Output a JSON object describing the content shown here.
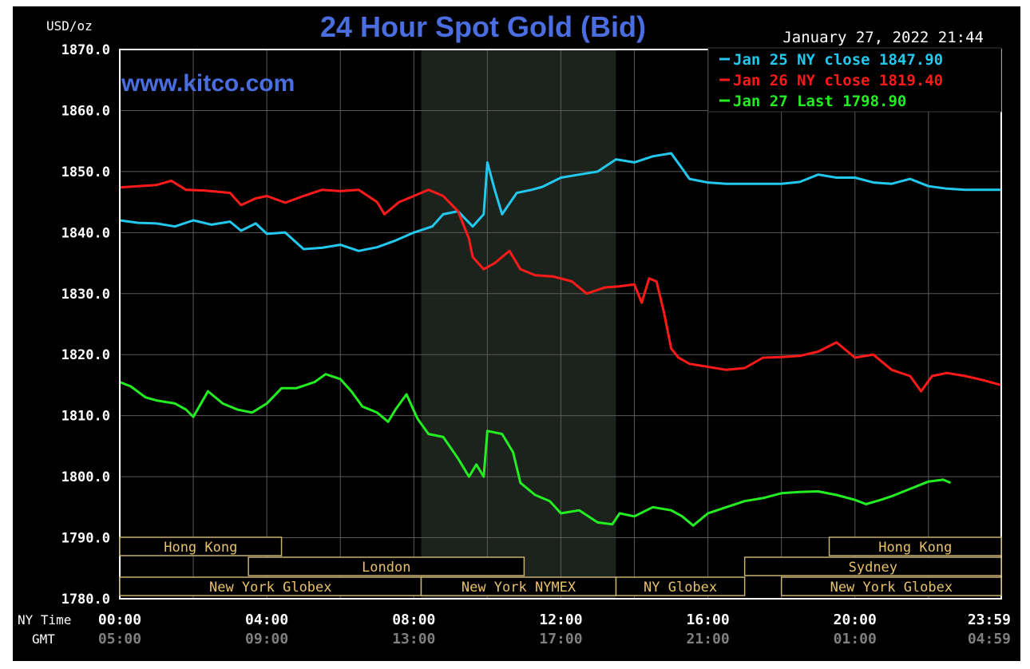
{
  "header": {
    "unit_label": "USD/oz",
    "title": "24 Hour Spot Gold (Bid)",
    "date_time": "January 27, 2022 21:44",
    "watermark": "www.kitco.com"
  },
  "colors": {
    "background": "#000000",
    "frame": "#ffffff",
    "grid": "#5a5a5a",
    "title": "#4a6ee0",
    "watermark": "#4a6ee0",
    "highlight": "#1c231c",
    "session_border": "#c8b070",
    "session_text": "#e7c16a",
    "time_text": "#ffffff",
    "gmt_text": "#7f7f7f",
    "jan25": "#22c8ee",
    "jan26": "#ff1a1a",
    "jan27": "#22ee22"
  },
  "legend": {
    "items": [
      {
        "label": "Jan 25 NY close 1847.90",
        "color": "#22c8ee"
      },
      {
        "label": "Jan 26 NY close 1819.40",
        "color": "#ff1a1a"
      },
      {
        "label": "Jan 27 Last 1798.90",
        "color": "#22ee22"
      }
    ]
  },
  "axis_footer": {
    "ny_label": "NY Time",
    "gmt_label": "GMT",
    "ny_ticks": [
      "00:00",
      "04:00",
      "08:00",
      "12:00",
      "16:00",
      "20:00",
      "23:59"
    ],
    "gmt_ticks": [
      "05:00",
      "09:00",
      "13:00",
      "17:00",
      "21:00",
      "01:00",
      "04:59"
    ]
  },
  "sessions": [
    {
      "name": "Hong Kong",
      "start": 0,
      "end": 4.4,
      "row": 0
    },
    {
      "name": "Hong Kong",
      "start": 19.3,
      "end": 23.98,
      "row": 0
    },
    {
      "name": "London",
      "start": 3.5,
      "end": 11.0,
      "row": 1
    },
    {
      "name": "Sydney",
      "start": 17.0,
      "end": 23.98,
      "row": 1
    },
    {
      "name": "New York Globex",
      "start": 0,
      "end": 8.2,
      "row": 2
    },
    {
      "name": "New York NYMEX",
      "start": 8.2,
      "end": 13.5,
      "row": 2
    },
    {
      "name": "NY Globex",
      "start": 13.5,
      "end": 17.0,
      "row": 2
    },
    {
      "name": "New York Globex",
      "start": 18.0,
      "end": 23.98,
      "row": 2
    }
  ],
  "chart_data": {
    "type": "line",
    "title": "24 Hour Spot Gold (Bid)",
    "ylabel": "USD/oz",
    "xlabel": "NY Time",
    "x_unit": "hours (NY time)",
    "xlim": [
      0,
      23.98
    ],
    "ylim": [
      1780,
      1870
    ],
    "y_ticks": [
      "1780.0",
      "1790.0",
      "1800.0",
      "1810.0",
      "1820.0",
      "1830.0",
      "1840.0",
      "1850.0",
      "1860.0",
      "1870.0"
    ],
    "highlight_range": [
      8.2,
      13.5
    ],
    "grid": true,
    "legend_position": "top-right",
    "series": [
      {
        "name": "Jan 25 NY close 1847.90",
        "color": "#22c8ee",
        "points": [
          [
            0,
            1842.0
          ],
          [
            0.5,
            1841.6
          ],
          [
            1,
            1841.5
          ],
          [
            1.5,
            1841.0
          ],
          [
            2,
            1842.0
          ],
          [
            2.5,
            1841.3
          ],
          [
            3,
            1841.8
          ],
          [
            3.3,
            1840.3
          ],
          [
            3.7,
            1841.5
          ],
          [
            4,
            1839.8
          ],
          [
            4.5,
            1840.0
          ],
          [
            5,
            1837.3
          ],
          [
            5.5,
            1837.5
          ],
          [
            6,
            1838.0
          ],
          [
            6.5,
            1837.0
          ],
          [
            7,
            1837.6
          ],
          [
            7.5,
            1838.7
          ],
          [
            8,
            1840.0
          ],
          [
            8.5,
            1841.0
          ],
          [
            8.8,
            1843.0
          ],
          [
            9.2,
            1843.5
          ],
          [
            9.6,
            1841.0
          ],
          [
            9.9,
            1843.0
          ],
          [
            10.0,
            1851.5
          ],
          [
            10.2,
            1847.0
          ],
          [
            10.4,
            1843.0
          ],
          [
            10.8,
            1846.5
          ],
          [
            11.2,
            1847.0
          ],
          [
            11.5,
            1847.5
          ],
          [
            12,
            1849.0
          ],
          [
            12.5,
            1849.5
          ],
          [
            13,
            1850.0
          ],
          [
            13.5,
            1852.0
          ],
          [
            14,
            1851.5
          ],
          [
            14.5,
            1852.5
          ],
          [
            15,
            1853.0
          ],
          [
            15.3,
            1850.5
          ],
          [
            15.5,
            1848.8
          ],
          [
            16,
            1848.2
          ],
          [
            16.5,
            1848.0
          ],
          [
            17,
            1848.0
          ],
          [
            17.5,
            1848.0
          ],
          [
            18,
            1848.0
          ],
          [
            18.5,
            1848.3
          ],
          [
            19,
            1849.5
          ],
          [
            19.5,
            1849.0
          ],
          [
            20,
            1849.0
          ],
          [
            20.5,
            1848.2
          ],
          [
            21,
            1848.0
          ],
          [
            21.5,
            1848.8
          ],
          [
            22,
            1847.6
          ],
          [
            22.5,
            1847.2
          ],
          [
            23,
            1847.0
          ],
          [
            23.5,
            1847.0
          ],
          [
            23.98,
            1847.0
          ]
        ]
      },
      {
        "name": "Jan 26 NY close 1819.40",
        "color": "#ff1a1a",
        "points": [
          [
            0,
            1847.4
          ],
          [
            0.5,
            1847.6
          ],
          [
            1,
            1847.8
          ],
          [
            1.4,
            1848.5
          ],
          [
            1.8,
            1847.0
          ],
          [
            2.3,
            1846.9
          ],
          [
            3,
            1846.5
          ],
          [
            3.3,
            1844.5
          ],
          [
            3.7,
            1845.6
          ],
          [
            4,
            1846.0
          ],
          [
            4.5,
            1844.9
          ],
          [
            5,
            1846.0
          ],
          [
            5.5,
            1847.0
          ],
          [
            6,
            1846.8
          ],
          [
            6.5,
            1847.0
          ],
          [
            7,
            1845.0
          ],
          [
            7.2,
            1843.0
          ],
          [
            7.6,
            1845.0
          ],
          [
            8,
            1846.0
          ],
          [
            8.4,
            1847.0
          ],
          [
            8.8,
            1846.0
          ],
          [
            9.2,
            1843.5
          ],
          [
            9.5,
            1839.0
          ],
          [
            9.6,
            1836.0
          ],
          [
            9.9,
            1834.0
          ],
          [
            10.2,
            1835.0
          ],
          [
            10.6,
            1837.0
          ],
          [
            10.9,
            1834.0
          ],
          [
            11.3,
            1833.0
          ],
          [
            11.8,
            1832.8
          ],
          [
            12.3,
            1832.0
          ],
          [
            12.7,
            1830.0
          ],
          [
            13.2,
            1831.0
          ],
          [
            13.6,
            1831.2
          ],
          [
            14,
            1831.5
          ],
          [
            14.2,
            1828.5
          ],
          [
            14.4,
            1832.5
          ],
          [
            14.6,
            1832.0
          ],
          [
            14.8,
            1827.0
          ],
          [
            15,
            1821.0
          ],
          [
            15.2,
            1819.5
          ],
          [
            15.5,
            1818.5
          ],
          [
            16,
            1818.0
          ],
          [
            16.5,
            1817.5
          ],
          [
            17,
            1817.8
          ],
          [
            17.5,
            1819.5
          ],
          [
            18,
            1819.6
          ],
          [
            18.5,
            1819.8
          ],
          [
            19,
            1820.5
          ],
          [
            19.5,
            1822.0
          ],
          [
            20,
            1819.5
          ],
          [
            20.5,
            1820.0
          ],
          [
            21,
            1817.5
          ],
          [
            21.5,
            1816.5
          ],
          [
            21.8,
            1814.0
          ],
          [
            22.1,
            1816.5
          ],
          [
            22.5,
            1817.0
          ],
          [
            23,
            1816.5
          ],
          [
            23.5,
            1815.8
          ],
          [
            23.98,
            1815.0
          ]
        ]
      },
      {
        "name": "Jan 27 Last 1798.90",
        "color": "#22ee22",
        "points": [
          [
            0,
            1815.5
          ],
          [
            0.3,
            1814.8
          ],
          [
            0.7,
            1813.0
          ],
          [
            1,
            1812.5
          ],
          [
            1.5,
            1812.0
          ],
          [
            1.8,
            1811.0
          ],
          [
            2.0,
            1809.8
          ],
          [
            2.4,
            1814.0
          ],
          [
            2.8,
            1812.0
          ],
          [
            3.2,
            1811.0
          ],
          [
            3.6,
            1810.5
          ],
          [
            4.0,
            1812.0
          ],
          [
            4.4,
            1814.5
          ],
          [
            4.8,
            1814.5
          ],
          [
            5.3,
            1815.5
          ],
          [
            5.6,
            1816.8
          ],
          [
            6.0,
            1816.0
          ],
          [
            6.3,
            1814.0
          ],
          [
            6.6,
            1811.5
          ],
          [
            7.0,
            1810.5
          ],
          [
            7.3,
            1809.0
          ],
          [
            7.5,
            1811.0
          ],
          [
            7.8,
            1813.5
          ],
          [
            8.1,
            1809.5
          ],
          [
            8.4,
            1807.0
          ],
          [
            8.8,
            1806.5
          ],
          [
            9.2,
            1803.0
          ],
          [
            9.5,
            1800.0
          ],
          [
            9.7,
            1802.0
          ],
          [
            9.9,
            1800.0
          ],
          [
            10.0,
            1807.5
          ],
          [
            10.4,
            1807.0
          ],
          [
            10.7,
            1804.0
          ],
          [
            10.9,
            1799.0
          ],
          [
            11.3,
            1797.0
          ],
          [
            11.7,
            1796.0
          ],
          [
            12.0,
            1794.0
          ],
          [
            12.5,
            1794.5
          ],
          [
            13.0,
            1792.5
          ],
          [
            13.4,
            1792.2
          ],
          [
            13.6,
            1794.0
          ],
          [
            14.0,
            1793.5
          ],
          [
            14.5,
            1795.0
          ],
          [
            15.0,
            1794.5
          ],
          [
            15.3,
            1793.5
          ],
          [
            15.6,
            1792.0
          ],
          [
            16.0,
            1794.0
          ],
          [
            16.5,
            1795.0
          ],
          [
            17.0,
            1796.0
          ],
          [
            17.5,
            1796.5
          ],
          [
            18.0,
            1797.3
          ],
          [
            18.5,
            1797.5
          ],
          [
            19.0,
            1797.6
          ],
          [
            19.5,
            1797.0
          ],
          [
            20.0,
            1796.2
          ],
          [
            20.3,
            1795.5
          ],
          [
            20.7,
            1796.2
          ],
          [
            21.0,
            1796.8
          ],
          [
            21.5,
            1798.0
          ],
          [
            22.0,
            1799.2
          ],
          [
            22.4,
            1799.5
          ],
          [
            22.6,
            1799.0
          ]
        ]
      }
    ]
  }
}
